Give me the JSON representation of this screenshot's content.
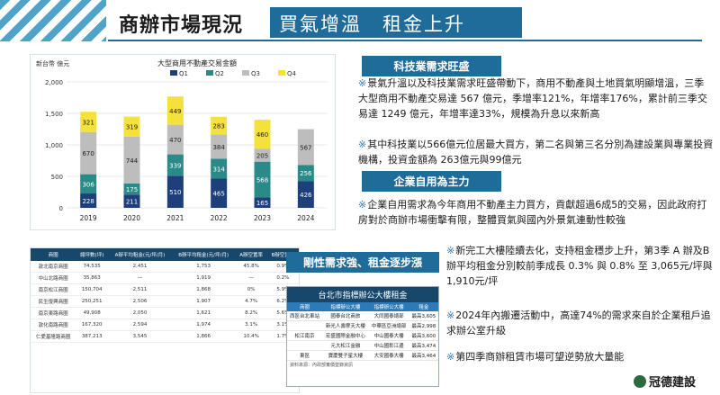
{
  "header": {
    "title": "商辦市場現況",
    "subtitle": "買氣增溫　租金上升"
  },
  "chart_data": {
    "type": "bar",
    "stacked": true,
    "title": "大型商用不動產交易金額",
    "unit_label": "新台幣 億元",
    "categories": [
      "2019",
      "2020",
      "2021",
      "2022",
      "2023",
      "2024"
    ],
    "series": [
      {
        "name": "Q1",
        "color": "#1d3f7a",
        "values": [
          228,
          211,
          510,
          465,
          165,
          426
        ]
      },
      {
        "name": "Q2",
        "color": "#2a8a87",
        "values": [
          306,
          175,
          339,
          314,
          568,
          256
        ]
      },
      {
        "name": "Q3",
        "color": "#bdbdbd",
        "values": [
          670,
          744,
          470,
          384,
          205,
          567
        ]
      },
      {
        "name": "Q4",
        "color": "#f4e13b",
        "values": [
          321,
          319,
          449,
          283,
          460,
          null
        ]
      }
    ],
    "yticks": [
      "0",
      "500",
      "1,000",
      "1,500",
      "2,000"
    ],
    "ylim": [
      0,
      2000
    ],
    "grid": true,
    "legend": "top"
  },
  "sections": {
    "tech": {
      "tag": "科技業需求旺盛",
      "p1": "景氣升溫以及科技業需求旺盛帶動下，商用不動產與土地買氣明顯增溫，三季大型商用不動產交易達 567 億元，季增率121%，年增率176%，累計前三季交易達 1249 億元，年增率達33%，規模為升息以來新高",
      "p2": "其中科技業以566億元位居最大買方，第二名與第三名分別為建設業與專業投資機構，投資金額為 263億元與99億元"
    },
    "self": {
      "tag": "企業自用為主力",
      "p1": "企業自用需求為今年商用不動產主力買方，貢獻超過6成5的交易，因此政府打房對於商辦市場衝擊有限，整體買氣與國內外景氣連動性較強"
    },
    "rent": {
      "tag": "剛性需求強、租金逐步漲",
      "p1": "新完工大樓陸續去化，支持租金穩步上升，第3季 A 辦及B 辦平均租金分別較前季成長 0.3% 與 0.8% 至 3,065元/坪與1,910元/坪",
      "p2": "2024年內搬遷活動中，高達74%的需求來自於企業租戶追求辦公室升級",
      "p3": "第四季商辦租賃市場可望逆勢放大量能"
    },
    "bullet_mark": "※"
  },
  "district_table": {
    "headers": [
      "商圈",
      "總坪數(坪)",
      "A辦平均租金(元/坪/月)",
      "B辦平均租金(元/坪/月)",
      "A辦空置率",
      "B辦空置率"
    ],
    "rows": [
      [
        "敦北南京商圈",
        "74,535",
        "2,451",
        "1,753",
        "45.8%",
        "0.9%"
      ],
      [
        "中山北路商圈",
        "35,863",
        "—",
        "1,919",
        "—",
        "0.2%"
      ],
      [
        "南京松江商圈",
        "150,704",
        "2,511",
        "1,868",
        "0%",
        "5.9%"
      ],
      [
        "民生復興商圈",
        "250,251",
        "2,506",
        "1,907",
        "4.7%",
        "6.2%"
      ],
      [
        "南京東路商圈",
        "49,908",
        "2,050",
        "1,621",
        "8.2%",
        "5.6%"
      ],
      [
        "敦化南路商圈",
        "167,320",
        "2,594",
        "1,974",
        "3.1%",
        "3.1%"
      ],
      [
        "仁愛基隆路商圈",
        "387,213",
        "3,545",
        "1,866",
        "10.4%",
        "1.7%"
      ]
    ]
  },
  "building_table": {
    "title": "台北市指標辦公大樓租金",
    "headers": [
      "商圈",
      "指標辦公大樓",
      "指標辦公大樓",
      "租金"
    ],
    "rows": [
      [
        "西區台北車站",
        "國泰台北商旅",
        "大同國泰總部",
        "最高3,605"
      ],
      [
        "",
        "新光人壽摩天大樓",
        "中華區亞洲總部",
        "最高2,998"
      ],
      [
        "松江南京",
        "宏盛國際金融中心",
        "中山國泰大樓",
        "最高3,600"
      ],
      [
        "",
        "元大松江金融",
        "中山國彰江邊",
        "最高3,474"
      ],
      [
        "東區",
        "寶慶雙子星大樓",
        "大安國泰大樓",
        "最高3,464"
      ]
    ],
    "note": "資料來源：內政部實價登錄資訊"
  },
  "logo": {
    "text": "冠德建設"
  }
}
